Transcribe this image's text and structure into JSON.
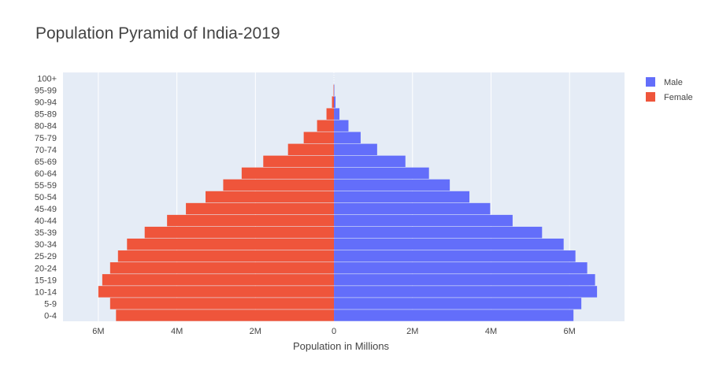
{
  "chart_data": {
    "type": "bar",
    "orientation": "horizontal",
    "barmode": "overlay",
    "title": "Population Pyramid of India-2019",
    "xlabel": "Population in Millions",
    "ylabel": "",
    "xlim": [
      -6.9,
      7.4
    ],
    "x_ticks": [
      -6,
      -4,
      -2,
      0,
      2,
      4,
      6
    ],
    "x_tick_labels": [
      "6M",
      "4M",
      "2M",
      "0",
      "2M",
      "4M",
      "6M"
    ],
    "categories": [
      "0-4",
      "5-9",
      "10-14",
      "15-19",
      "20-24",
      "25-29",
      "30-34",
      "35-39",
      "40-44",
      "45-49",
      "50-54",
      "55-59",
      "60-64",
      "65-69",
      "70-74",
      "75-79",
      "80-84",
      "85-89",
      "90-94",
      "95-99",
      "100+"
    ],
    "series": [
      {
        "name": "Male",
        "color": "#636efa",
        "values": [
          6.1,
          6.3,
          6.7,
          6.65,
          6.45,
          6.15,
          5.85,
          5.3,
          4.55,
          3.98,
          3.45,
          2.95,
          2.42,
          1.82,
          1.1,
          0.68,
          0.37,
          0.14,
          0.04,
          0.01,
          0.0
        ]
      },
      {
        "name": "Female",
        "color": "#ef553b",
        "values": [
          -5.55,
          -5.7,
          -6.0,
          -5.9,
          -5.7,
          -5.5,
          -5.27,
          -4.82,
          -4.25,
          -3.77,
          -3.27,
          -2.82,
          -2.35,
          -1.8,
          -1.17,
          -0.77,
          -0.43,
          -0.19,
          -0.05,
          -0.01,
          0.0
        ]
      }
    ],
    "legend": {
      "position": "top-right",
      "entries": [
        "Male",
        "Female"
      ]
    },
    "grid": true,
    "colors": {
      "plot_bg": "#e5ecf6",
      "grid": "#ffffff",
      "text": "#444444"
    }
  }
}
